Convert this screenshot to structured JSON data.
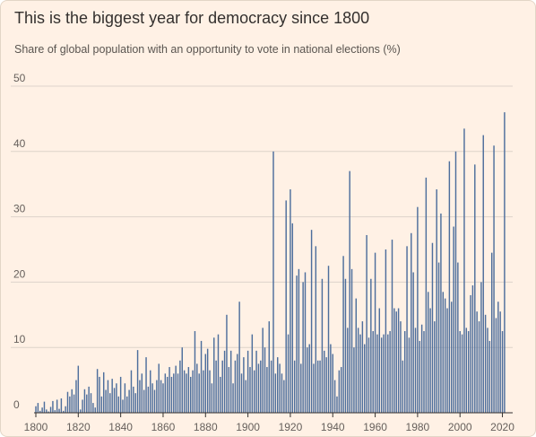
{
  "title": "This is the biggest year for democracy since 1800",
  "subtitle": "Share of global population with an opportunity to vote in national elections (%)",
  "chart_data": {
    "type": "bar",
    "title": "This is the biggest year for democracy since 1800",
    "subtitle": "Share of global population with an opportunity to vote in national elections (%)",
    "xlabel": "",
    "ylabel": "",
    "xlim": [
      1800,
      2024
    ],
    "ylim": [
      0,
      50
    ],
    "x_ticks": [
      "1800",
      "1820",
      "1840",
      "1860",
      "1880",
      "1900",
      "1920",
      "1940",
      "1960",
      "1980",
      "2000",
      "2020"
    ],
    "y_ticks": [
      "0",
      "10",
      "20",
      "30",
      "40",
      "50"
    ],
    "grid": "horizontal",
    "colors": {
      "bar": "#4d6e9c",
      "grid": "#ddd3ca",
      "axis": "#33302e",
      "background": "#fff1e5"
    },
    "start_year": 1800,
    "values": [
      1.0,
      1.5,
      0.3,
      0.8,
      1.7,
      0.5,
      0.2,
      0.9,
      1.8,
      0.4,
      2.0,
      0.6,
      2.2,
      0.3,
      1.0,
      3.2,
      2.5,
      3.6,
      2.8,
      5.0,
      7.2,
      0.5,
      2.0,
      3.6,
      2.8,
      4.0,
      3.0,
      1.5,
      0.8,
      6.7,
      5.5,
      2.5,
      6.2,
      3.5,
      5.0,
      3.0,
      5.2,
      3.8,
      4.5,
      2.5,
      5.5,
      2.0,
      4.5,
      2.5,
      3.5,
      6.5,
      4.0,
      3.0,
      9.6,
      5.0,
      6.0,
      3.5,
      8.5,
      4.0,
      6.5,
      4.5,
      3.5,
      5.0,
      7.5,
      5.0,
      4.5,
      6.0,
      5.5,
      7.0,
      5.5,
      6.0,
      7.2,
      6.0,
      8.0,
      10.0,
      6.5,
      6.0,
      7.0,
      5.5,
      6.5,
      12.5,
      7.5,
      6.0,
      11.0,
      6.5,
      9.0,
      9.8,
      6.5,
      4.5,
      11.5,
      8.0,
      12.0,
      5.5,
      8.0,
      9.5,
      15.0,
      7.0,
      9.5,
      4.5,
      8.0,
      9.0,
      17.0,
      6.0,
      8.5,
      5.0,
      9.5,
      7.0,
      12.0,
      6.5,
      9.5,
      7.5,
      8.0,
      13.0,
      10.0,
      7.0,
      14.0,
      8.0,
      40.0,
      6.0,
      8.5,
      7.5,
      6.0,
      5.0,
      32.5,
      12.0,
      34.2,
      29.0,
      8.0,
      21.0,
      22.0,
      7.5,
      20.0,
      21.5,
      10.0,
      10.5,
      28.0,
      7.5,
      25.5,
      8.0,
      8.0,
      20.5,
      9.5,
      8.5,
      22.5,
      10.5,
      9.0,
      5.0,
      2.5,
      6.5,
      7.0,
      24.0,
      20.5,
      13.0,
      37.0,
      22.0,
      10.0,
      17.5,
      13.0,
      12.0,
      14.0,
      10.5,
      27.2,
      11.5,
      20.5,
      12.5,
      24.5,
      12.0,
      16.0,
      11.5,
      12.0,
      25.0,
      12.0,
      12.5,
      26.5,
      16.0,
      15.5,
      16.0,
      14.0,
      8.0,
      12.5,
      25.5,
      11.5,
      27.5,
      21.5,
      13.0,
      31.5,
      11.0,
      13.5,
      12.5,
      36.0,
      18.5,
      16.0,
      26.0,
      14.0,
      34.2,
      23.0,
      30.5,
      18.5,
      17.5,
      16.0,
      38.5,
      17.0,
      28.5,
      40.0,
      23.0,
      12.5,
      12.0,
      43.5,
      13.0,
      12.5,
      18.0,
      19.5,
      38.0,
      15.5,
      14.0,
      20.0,
      42.5,
      15.0,
      13.0,
      11.0,
      24.5,
      40.9,
      14.5,
      17.0,
      15.5,
      12.5,
      46.0
    ]
  }
}
